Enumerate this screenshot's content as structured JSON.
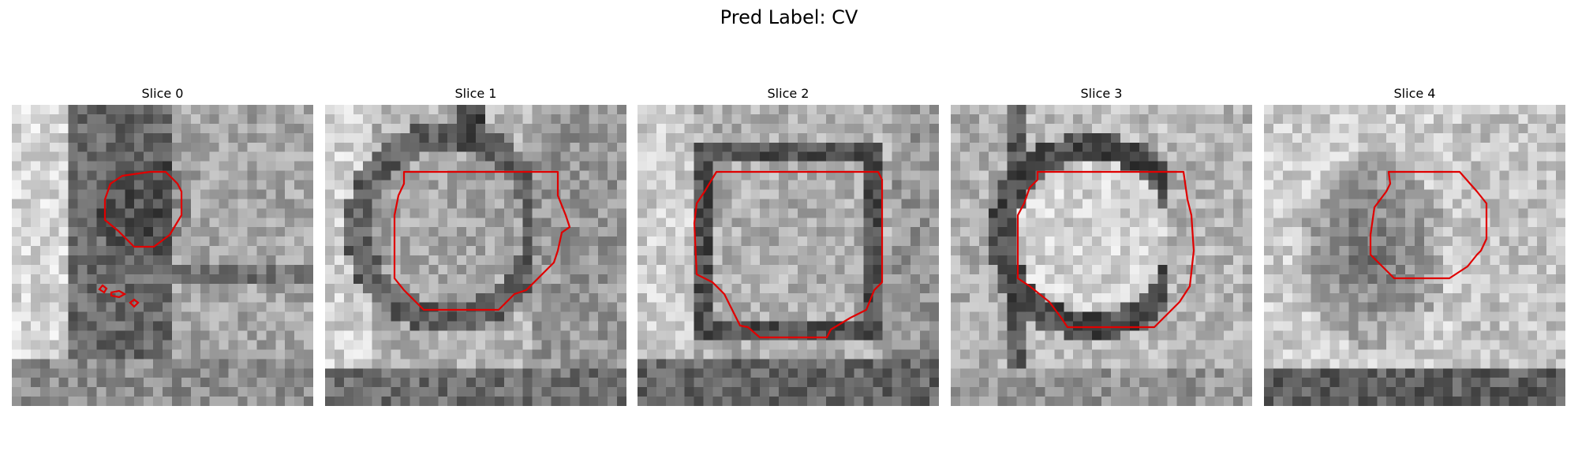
{
  "figure": {
    "title": "Pred Label: CV",
    "contour_color": "#e00000",
    "colormap": "gray",
    "axes_visible": false,
    "panels": [
      {
        "title": "Slice 0"
      },
      {
        "title": "Slice 1"
      },
      {
        "title": "Slice 2"
      },
      {
        "title": "Slice 3"
      },
      {
        "title": "Slice 4"
      }
    ]
  }
}
